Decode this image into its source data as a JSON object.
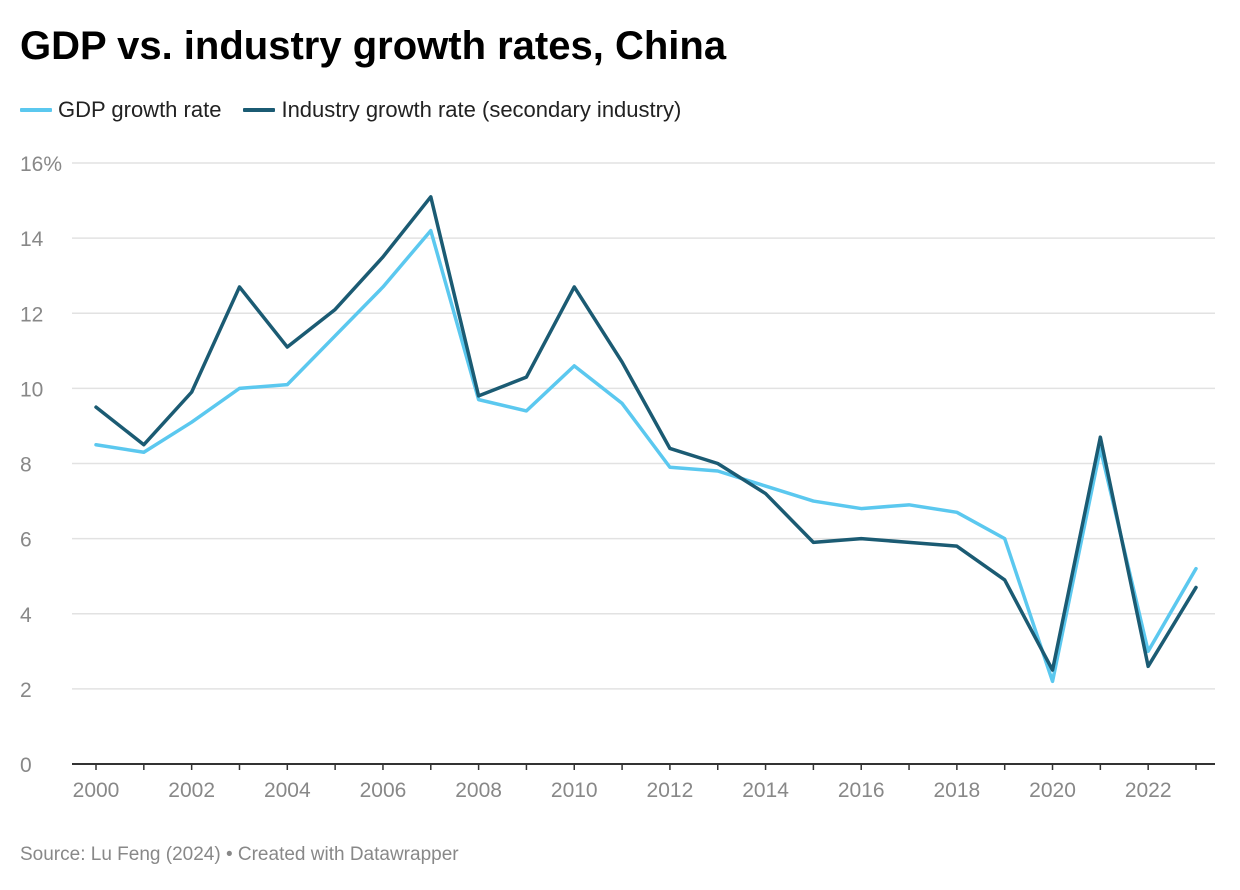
{
  "title": "GDP vs. industry growth rates, China",
  "source": "Source: Lu Feng (2024) • Created with Datawrapper",
  "colors": {
    "gdp": "#5bc8ef",
    "industry": "#1b5b73",
    "grid": "#e2e2e2",
    "axis": "#333333",
    "tick_text": "#888888"
  },
  "chart_data": {
    "type": "line",
    "title": "GDP vs. industry growth rates, China",
    "xlabel": "",
    "ylabel": "",
    "x": [
      2000,
      2001,
      2002,
      2003,
      2004,
      2005,
      2006,
      2007,
      2008,
      2009,
      2010,
      2011,
      2012,
      2013,
      2014,
      2015,
      2016,
      2017,
      2018,
      2019,
      2020,
      2021,
      2022,
      2023
    ],
    "xlim": [
      2000,
      2023
    ],
    "ylim": [
      0,
      16
    ],
    "x_ticks": [
      "2000",
      "2002",
      "2004",
      "2006",
      "2008",
      "2010",
      "2012",
      "2014",
      "2016",
      "2018",
      "2020",
      "2022"
    ],
    "y_ticks": [
      {
        "value": 0,
        "label": "0"
      },
      {
        "value": 2,
        "label": "2"
      },
      {
        "value": 4,
        "label": "4"
      },
      {
        "value": 6,
        "label": "6"
      },
      {
        "value": 8,
        "label": "8"
      },
      {
        "value": 10,
        "label": "10"
      },
      {
        "value": 12,
        "label": "12"
      },
      {
        "value": 14,
        "label": "14"
      },
      {
        "value": 16,
        "label": "16%"
      }
    ],
    "grid": true,
    "legend_position": "top-left",
    "series": [
      {
        "name": "GDP growth rate",
        "color": "#5bc8ef",
        "values": [
          8.5,
          8.3,
          9.1,
          10.0,
          10.1,
          11.4,
          12.7,
          14.2,
          9.7,
          9.4,
          10.6,
          9.6,
          7.9,
          7.8,
          7.4,
          7.0,
          6.8,
          6.9,
          6.7,
          6.0,
          2.2,
          8.4,
          3.0,
          5.2
        ]
      },
      {
        "name": "Industry growth rate (secondary industry)",
        "color": "#1b5b73",
        "values": [
          9.5,
          8.5,
          9.9,
          12.7,
          11.1,
          12.1,
          13.5,
          15.1,
          9.8,
          10.3,
          12.7,
          10.7,
          8.4,
          8.0,
          7.2,
          5.9,
          6.0,
          5.9,
          5.8,
          4.9,
          2.5,
          8.7,
          2.6,
          4.7
        ]
      }
    ]
  }
}
